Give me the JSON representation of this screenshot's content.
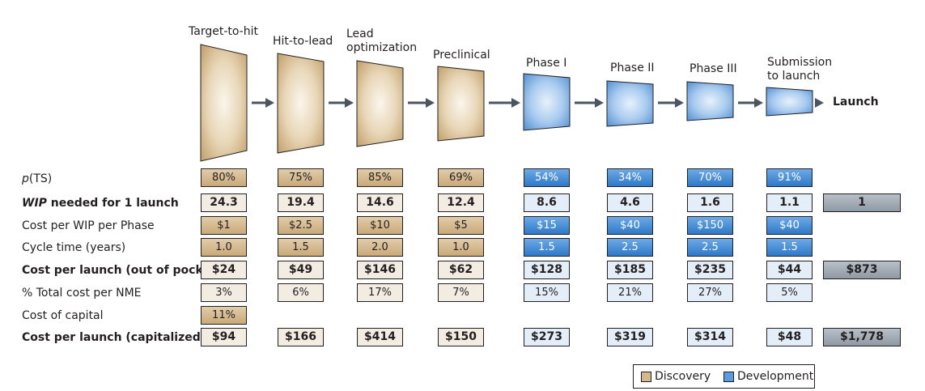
{
  "stages": [
    {
      "name": "Target-to-hit",
      "category": "discovery"
    },
    {
      "name": "Hit-to-lead",
      "category": "discovery"
    },
    {
      "name": "Lead optimization",
      "category": "discovery"
    },
    {
      "name": "Preclinical",
      "category": "discovery"
    },
    {
      "name": "Phase I",
      "category": "development"
    },
    {
      "name": "Phase II",
      "category": "development"
    },
    {
      "name": "Phase III",
      "category": "development"
    },
    {
      "name": "Submission to launch",
      "category": "development"
    }
  ],
  "launch_label": "Launch",
  "rows": {
    "pts": {
      "label_prefix": "p",
      "label_suffix": "(TS)",
      "values": [
        "80%",
        "75%",
        "85%",
        "69%",
        "54%",
        "34%",
        "70%",
        "91%"
      ],
      "total": ""
    },
    "wip": {
      "label_em": "WIP",
      "label_rest": " needed for 1 launch",
      "values": [
        "24.3",
        "19.4",
        "14.6",
        "12.4",
        "8.6",
        "4.6",
        "1.6",
        "1.1"
      ],
      "total": "1"
    },
    "cost_wip": {
      "label": "Cost per WIP per Phase",
      "values": [
        "$1",
        "$2.5",
        "$10",
        "$5",
        "$15",
        "$40",
        "$150",
        "$40"
      ],
      "total": ""
    },
    "cycle": {
      "label": "Cycle time (years)",
      "values": [
        "1.0",
        "1.5",
        "2.0",
        "1.0",
        "1.5",
        "2.5",
        "2.5",
        "1.5"
      ],
      "total": ""
    },
    "cpl_oop": {
      "label": "Cost per launch (out of pocket)",
      "values": [
        "$24",
        "$49",
        "$146",
        "$62",
        "$128",
        "$185",
        "$235",
        "$44"
      ],
      "total": "$873"
    },
    "pct_total": {
      "label": "% Total cost per NME",
      "values": [
        "3%",
        "6%",
        "17%",
        "7%",
        "15%",
        "21%",
        "27%",
        "5%"
      ],
      "total": ""
    },
    "capital": {
      "label": "Cost of capital",
      "values": [
        "11%"
      ],
      "total": ""
    },
    "cpl_cap": {
      "label": "Cost per launch (capitalized)",
      "values": [
        "$94",
        "$166",
        "$414",
        "$150",
        "$273",
        "$319",
        "$314",
        "$48"
      ],
      "total": "$1,778"
    }
  },
  "legend": {
    "discovery": "Discovery",
    "development": "Development"
  },
  "colors": {
    "discovery": "#d4b98f",
    "development": "#5b9be0",
    "total": "#a3adb6",
    "arrow": "#4a5560"
  }
}
